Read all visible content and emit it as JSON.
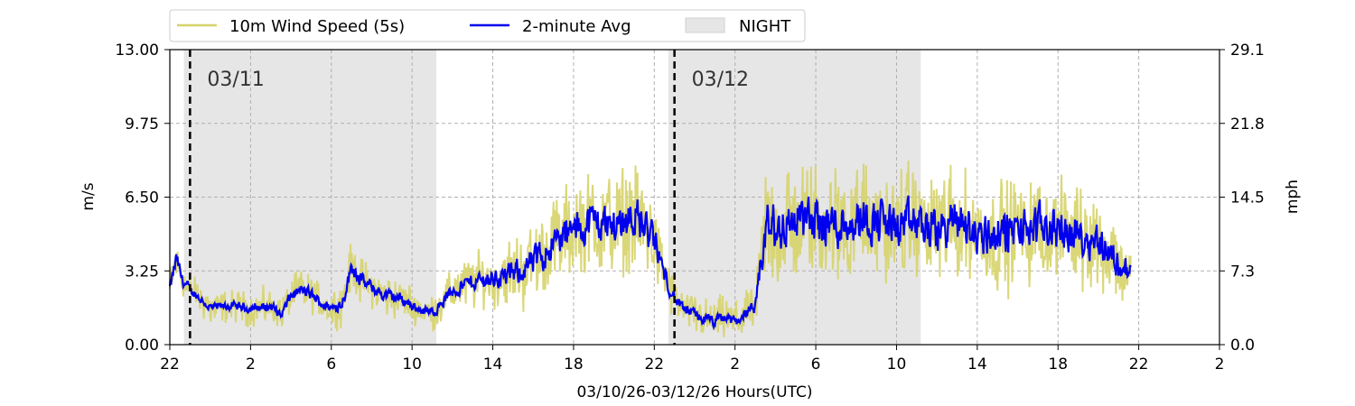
{
  "chart_data": {
    "type": "line",
    "xlabel": "03/10/26-03/12/26  Hours(UTC)",
    "ylabel": "m/s",
    "ylabel_right": "mph",
    "ylim": [
      0,
      13
    ],
    "ylim_right": [
      0,
      29.1
    ],
    "yticks": [
      "0.00",
      "3.25",
      "6.50",
      "9.75",
      "13.00"
    ],
    "yticks_right": [
      "0.0",
      "7.3",
      "14.5",
      "21.8",
      "29.1"
    ],
    "x_range_hours": [
      22,
      74
    ],
    "xtick_labels": [
      "22",
      "2",
      "6",
      "10",
      "14",
      "18",
      "22",
      "2",
      "6",
      "10",
      "14",
      "18",
      "22",
      "2"
    ],
    "grid": true,
    "legend_position": "top-left outside",
    "legend": [
      {
        "name": "10m Wind Speed (5s)",
        "color": "#d6d36a",
        "kind": "line"
      },
      {
        "name": "2-minute Avg",
        "color": "#0000ee",
        "kind": "line"
      },
      {
        "name": "NIGHT",
        "color": "#e6e6e6",
        "kind": "patch"
      }
    ],
    "night_periods_hours": [
      [
        22.7,
        35.2
      ],
      [
        46.7,
        59.2
      ]
    ],
    "date_markers": [
      {
        "hour": 23,
        "label": "03/11"
      },
      {
        "hour": 47,
        "label": "03/12"
      }
    ],
    "avg_profile": {
      "x_hours": [
        22,
        22.3,
        22.6,
        23,
        23.5,
        24,
        25,
        26,
        27,
        27.5,
        28,
        28.5,
        29,
        29.5,
        30,
        30.5,
        31,
        31.5,
        32,
        32.5,
        33,
        33.5,
        34,
        34.5,
        35,
        36,
        37,
        38,
        39,
        40,
        41,
        42,
        43,
        44,
        45,
        46,
        46.5,
        47,
        47.5,
        48,
        48.5,
        49,
        49.5,
        50,
        50.5,
        51,
        51.5,
        52,
        53,
        54,
        55,
        56,
        57,
        58,
        59,
        60,
        61,
        62,
        63,
        64,
        65,
        66,
        67,
        68,
        69,
        70
      ],
      "values": [
        2.5,
        3.8,
        2.8,
        2.4,
        2.0,
        1.6,
        1.7,
        1.6,
        1.7,
        1.3,
        2.2,
        2.4,
        2.2,
        1.8,
        1.6,
        1.8,
        3.5,
        2.8,
        2.5,
        2.2,
        2.1,
        2.0,
        1.7,
        1.5,
        1.4,
        2.4,
        2.8,
        2.9,
        3.1,
        3.6,
        4.5,
        5.0,
        5.5,
        5.2,
        5.8,
        4.5,
        3.0,
        2.0,
        1.5,
        1.3,
        1.1,
        1.0,
        1.2,
        1.0,
        1.4,
        1.6,
        5.2,
        5.0,
        5.5,
        5.4,
        5.3,
        5.6,
        5.5,
        5.2,
        5.3,
        5.0,
        5.5,
        4.8,
        4.9,
        5.0,
        5.2,
        5.1,
        4.8,
        4.6,
        3.5,
        2.8
      ],
      "variability": [
        0.5,
        0.6,
        0.4,
        0.3,
        0.3,
        0.3,
        0.3,
        0.3,
        0.3,
        0.3,
        0.4,
        0.4,
        0.4,
        0.3,
        0.3,
        0.4,
        0.6,
        0.5,
        0.4,
        0.4,
        0.4,
        0.4,
        0.3,
        0.3,
        0.3,
        0.5,
        0.6,
        0.6,
        0.8,
        1.0,
        1.1,
        1.2,
        1.3,
        1.3,
        1.4,
        1.1,
        0.6,
        0.4,
        0.4,
        0.4,
        0.4,
        0.4,
        0.4,
        0.4,
        0.4,
        0.4,
        1.8,
        1.7,
        1.6,
        1.6,
        1.6,
        1.6,
        1.5,
        1.5,
        1.5,
        1.5,
        1.5,
        1.4,
        1.4,
        1.4,
        1.4,
        1.3,
        1.3,
        1.2,
        0.9,
        0.7
      ],
      "end_hour": 69.6
    }
  }
}
